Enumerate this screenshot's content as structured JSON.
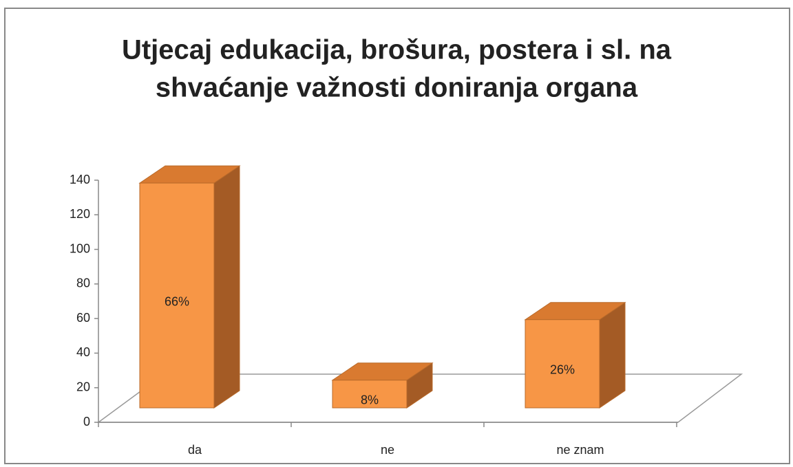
{
  "chart_data": {
    "type": "bar3d",
    "title": [
      "Utjecaj edukacija, brošura, postera i sl. na",
      "shvaćanje važnosti doniranja organa"
    ],
    "categories": [
      "da",
      "ne",
      "ne znam"
    ],
    "values": [
      130,
      16,
      51
    ],
    "percent_labels": [
      "66%",
      "8%",
      "26%"
    ],
    "color": "#f79646",
    "ylim": [
      0,
      140
    ],
    "yticks": [
      0,
      20,
      40,
      60,
      80,
      100,
      120,
      140
    ]
  }
}
